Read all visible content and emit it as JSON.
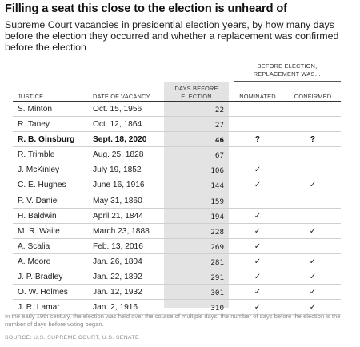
{
  "title": "Filling a seat this close to the election is unheard of",
  "subtitle": "Supreme Court vacancies in presidential election years, by how many days before the election they occurred and whether a replacement was confirmed before the election",
  "group_header": "BEFORE ELECTION, REPLACEMENT WAS…",
  "columns": {
    "justice": "JUSTICE",
    "date": "DATE OF VACANCY",
    "days": "DAYS BEFORE ELECTION",
    "nominated": "NOMINATED",
    "confirmed": "CONFIRMED"
  },
  "rows": [
    {
      "justice": "S. Minton",
      "date": "Oct. 15, 1956",
      "days": "22",
      "nominated": "",
      "confirmed": "",
      "bold": false
    },
    {
      "justice": "R. Taney",
      "date": "Oct. 12, 1864",
      "days": "27",
      "nominated": "",
      "confirmed": "",
      "bold": false
    },
    {
      "justice": "R. B. Ginsburg",
      "date": "Sept. 18, 2020",
      "days": "46",
      "nominated": "?",
      "confirmed": "?",
      "bold": true
    },
    {
      "justice": "R. Trimble",
      "date": "Aug. 25, 1828",
      "days": "67",
      "nominated": "",
      "confirmed": "",
      "bold": false
    },
    {
      "justice": "J. McKinley",
      "date": "July 19, 1852",
      "days": "106",
      "nominated": "✓",
      "confirmed": "",
      "bold": false
    },
    {
      "justice": "C. E. Hughes",
      "date": "June 16, 1916",
      "days": "144",
      "nominated": "✓",
      "confirmed": "✓",
      "bold": false
    },
    {
      "justice": "P. V. Daniel",
      "date": "May 31, 1860",
      "days": "159",
      "nominated": "",
      "confirmed": "",
      "bold": false
    },
    {
      "justice": "H. Baldwin",
      "date": "April 21, 1844",
      "days": "194",
      "nominated": "✓",
      "confirmed": "",
      "bold": false
    },
    {
      "justice": "M. R. Waite",
      "date": "March 23, 1888",
      "days": "228",
      "nominated": "✓",
      "confirmed": "✓",
      "bold": false
    },
    {
      "justice": "A. Scalia",
      "date": "Feb. 13, 2016",
      "days": "269",
      "nominated": "✓",
      "confirmed": "",
      "bold": false
    },
    {
      "justice": "A. Moore",
      "date": "Jan. 26, 1804",
      "days": "281",
      "nominated": "✓",
      "confirmed": "✓",
      "bold": false
    },
    {
      "justice": "J. P. Bradley",
      "date": "Jan. 22, 1892",
      "days": "291",
      "nominated": "✓",
      "confirmed": "✓",
      "bold": false
    },
    {
      "justice": "O. W. Holmes",
      "date": "Jan. 12, 1932",
      "days": "301",
      "nominated": "✓",
      "confirmed": "✓",
      "bold": false
    },
    {
      "justice": "J. R. Lamar",
      "date": "Jan. 2, 1916",
      "days": "310",
      "nominated": "✓",
      "confirmed": "✓",
      "bold": false
    }
  ],
  "footnote": "In the early 19th century, the election was held over the course of multiple days; the number of days before the election is the number of days before voting began.",
  "source": "SOURCE: U.S. SUPREME COURT, U.S. SENATE"
}
